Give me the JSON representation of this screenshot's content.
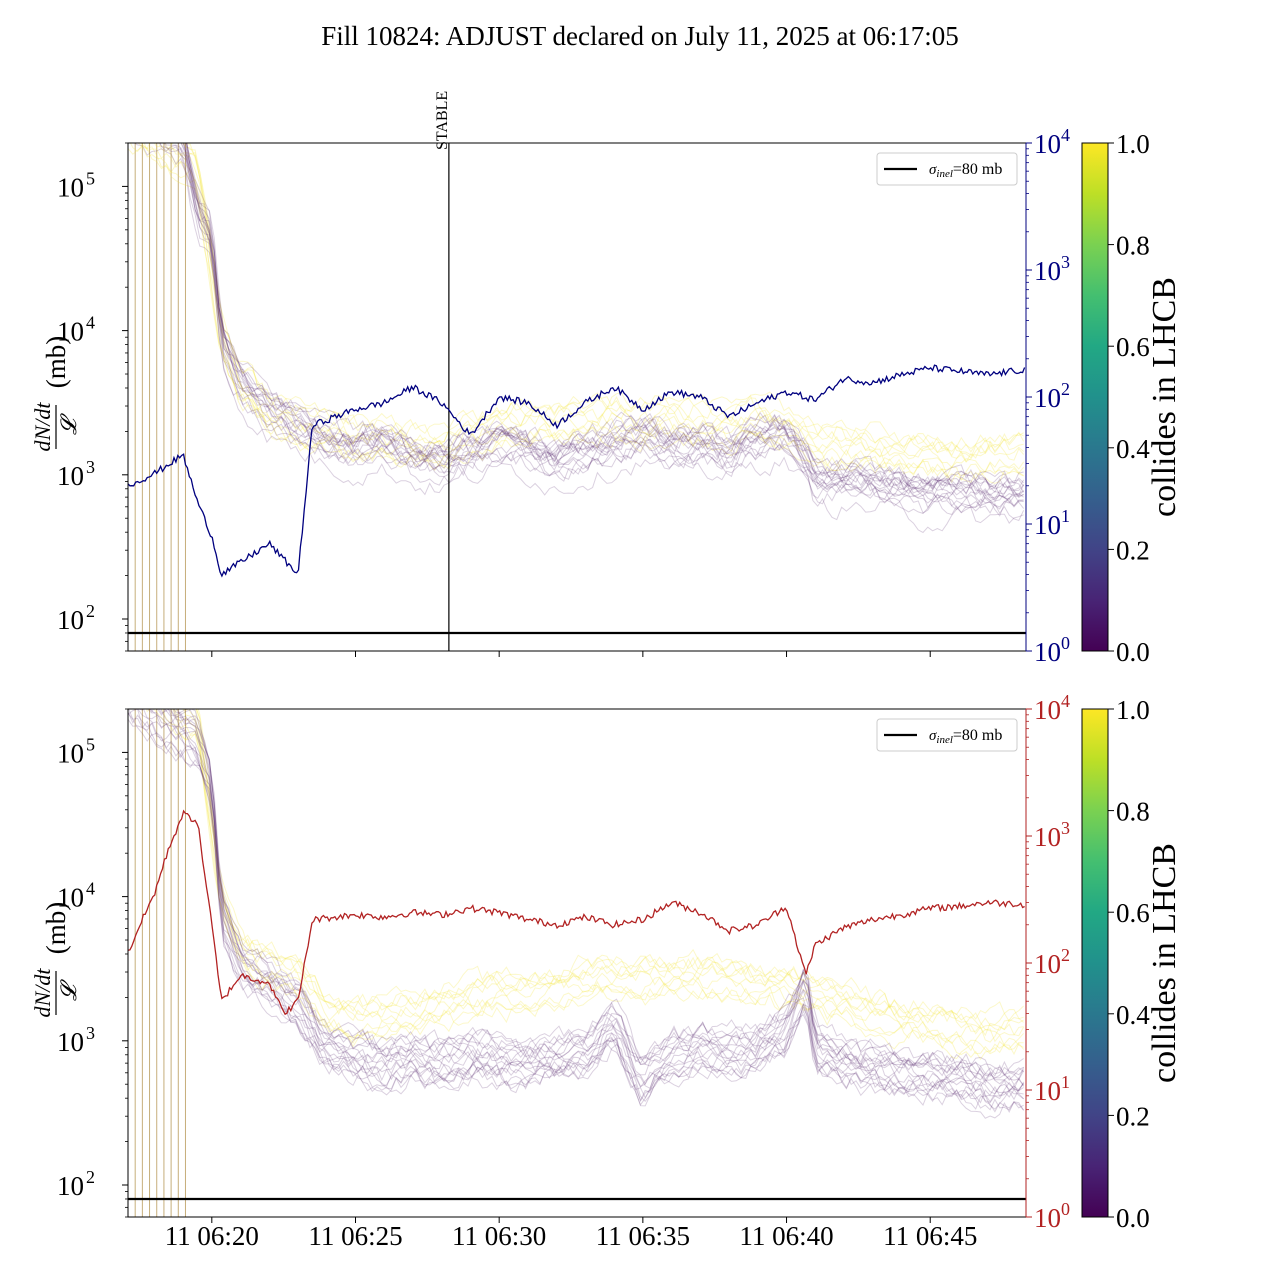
{
  "title": "Fill 10824: ADJUST declared on July 11, 2025 at 06:17:05",
  "colors": {
    "top_right_axis": "#00007f",
    "bottom_right_axis": "#b22222",
    "bundle_low": "#5a2e74",
    "bundle_high": "#f5e642",
    "reference_line": "#000000",
    "injection_lines": "#b89a5a"
  },
  "chart_data": [
    {
      "type": "line",
      "panel": "top",
      "ylabel_num": "dN/dt",
      "ylabel_den": "𝓛",
      "ylabel_unit": "(mb)",
      "y_scale": "log",
      "ylim": [
        60,
        200000
      ],
      "y_ticks": [
        "10",
        "10",
        "10",
        "10"
      ],
      "y_tick_exps": [
        "2",
        "3",
        "4",
        "5"
      ],
      "y2_scale": "log",
      "y2lim": [
        1,
        10000
      ],
      "y2_ticks": [
        "10",
        "10",
        "10",
        "10",
        "10"
      ],
      "y2_tick_exps": [
        "0",
        "1",
        "2",
        "3",
        "4"
      ],
      "xlim": [
        "06:17:05",
        "06:48:20"
      ],
      "reference_line": {
        "value": 80,
        "label_sym": "σ",
        "label_sub": "inel",
        "label_rest": "=80 mb"
      },
      "vertical_marker": {
        "time": "06:28:15",
        "label": "STABLE"
      },
      "injection_lines": [
        "06:17:20",
        "06:17:35",
        "06:17:50",
        "06:18:05",
        "06:18:20",
        "06:18:35",
        "06:18:50",
        "06:19:05"
      ],
      "right_series": {
        "name": "",
        "points": [
          [
            "06:17:05",
            20
          ],
          [
            "06:18:00",
            25
          ],
          [
            "06:19:00",
            35
          ],
          [
            "06:19:30",
            15
          ],
          [
            "06:20:00",
            8
          ],
          [
            "06:20:20",
            4
          ],
          [
            "06:21:00",
            5
          ],
          [
            "06:22:00",
            7
          ],
          [
            "06:23:00",
            4
          ],
          [
            "06:23:30",
            60
          ],
          [
            "06:25:00",
            80
          ],
          [
            "06:26:00",
            90
          ],
          [
            "06:27:00",
            120
          ],
          [
            "06:28:00",
            90
          ],
          [
            "06:29:00",
            50
          ],
          [
            "06:30:00",
            100
          ],
          [
            "06:31:00",
            90
          ],
          [
            "06:32:00",
            60
          ],
          [
            "06:33:00",
            90
          ],
          [
            "06:34:00",
            120
          ],
          [
            "06:35:00",
            80
          ],
          [
            "06:36:00",
            110
          ],
          [
            "06:37:00",
            100
          ],
          [
            "06:38:00",
            70
          ],
          [
            "06:39:00",
            90
          ],
          [
            "06:40:00",
            110
          ],
          [
            "06:41:00",
            95
          ],
          [
            "06:42:00",
            140
          ],
          [
            "06:43:00",
            130
          ],
          [
            "06:44:00",
            150
          ],
          [
            "06:45:00",
            170
          ],
          [
            "06:46:00",
            160
          ],
          [
            "06:47:00",
            150
          ],
          [
            "06:48:20",
            165
          ]
        ]
      },
      "bundle_low_median": [
        [
          "06:17:05",
          250000
        ],
        [
          "06:19:00",
          200000
        ],
        [
          "06:19:30",
          60000
        ],
        [
          "06:20:00",
          40000
        ],
        [
          "06:20:20",
          8000
        ],
        [
          "06:21:00",
          4000
        ],
        [
          "06:22:00",
          2500
        ],
        [
          "06:23:00",
          2000
        ],
        [
          "06:24:00",
          1600
        ],
        [
          "06:25:00",
          1400
        ],
        [
          "06:26:00",
          1500
        ],
        [
          "06:27:00",
          1200
        ],
        [
          "06:28:00",
          1100
        ],
        [
          "06:29:00",
          1300
        ],
        [
          "06:30:00",
          1500
        ],
        [
          "06:31:00",
          1400
        ],
        [
          "06:32:00",
          1100
        ],
        [
          "06:33:00",
          1300
        ],
        [
          "06:34:00",
          1500
        ],
        [
          "06:35:00",
          1700
        ],
        [
          "06:36:00",
          1400
        ],
        [
          "06:37:00",
          1500
        ],
        [
          "06:38:00",
          1300
        ],
        [
          "06:39:00",
          1600
        ],
        [
          "06:40:00",
          1700
        ],
        [
          "06:40:45",
          1100
        ],
        [
          "06:41:00",
          850
        ],
        [
          "06:42:00",
          800
        ],
        [
          "06:43:00",
          800
        ],
        [
          "06:44:00",
          750
        ],
        [
          "06:45:00",
          650
        ],
        [
          "06:46:00",
          700
        ],
        [
          "06:47:00",
          650
        ],
        [
          "06:48:20",
          700
        ]
      ],
      "bundle_high_median": [
        [
          "06:17:05",
          300000
        ],
        [
          "06:19:30",
          150000
        ],
        [
          "06:20:20",
          10000
        ],
        [
          "06:21:00",
          5000
        ],
        [
          "06:22:00",
          3000
        ],
        [
          "06:23:00",
          2400
        ],
        [
          "06:24:00",
          2200
        ],
        [
          "06:25:00",
          2000
        ],
        [
          "06:26:00",
          1900
        ],
        [
          "06:27:00",
          1800
        ],
        [
          "06:28:00",
          1700
        ],
        [
          "06:29:00",
          2200
        ],
        [
          "06:30:00",
          2400
        ],
        [
          "06:31:00",
          2600
        ],
        [
          "06:32:00",
          2500
        ],
        [
          "06:33:00",
          2600
        ],
        [
          "06:34:00",
          2800
        ],
        [
          "06:35:00",
          2600
        ],
        [
          "06:36:00",
          2700
        ],
        [
          "06:37:00",
          2600
        ],
        [
          "06:38:00",
          2500
        ],
        [
          "06:39:00",
          2600
        ],
        [
          "06:40:00",
          2400
        ],
        [
          "06:41:00",
          1800
        ],
        [
          "06:42:00",
          1800
        ],
        [
          "06:43:00",
          1700
        ],
        [
          "06:44:00",
          1600
        ],
        [
          "06:45:00",
          1500
        ],
        [
          "06:46:00",
          1400
        ],
        [
          "06:47:00",
          1500
        ],
        [
          "06:48:20",
          1600
        ]
      ]
    },
    {
      "type": "line",
      "panel": "bottom",
      "ylabel_num": "dN/dt",
      "ylabel_den": "𝓛",
      "ylabel_unit": "(mb)",
      "y_scale": "log",
      "ylim": [
        60,
        200000
      ],
      "y_ticks": [
        "10",
        "10",
        "10",
        "10"
      ],
      "y_tick_exps": [
        "2",
        "3",
        "4",
        "5"
      ],
      "y2_scale": "log",
      "y2lim": [
        1,
        10000
      ],
      "y2_ticks": [
        "10",
        "10",
        "10",
        "10",
        "10"
      ],
      "y2_tick_exps": [
        "0",
        "1",
        "2",
        "3",
        "4"
      ],
      "xlim": [
        "06:17:05",
        "06:48:20"
      ],
      "x_ticks": [
        "11 06:20",
        "11 06:25",
        "11 06:30",
        "11 06:35",
        "11 06:40",
        "11 06:45"
      ],
      "x_tick_times": [
        "06:20:00",
        "06:25:00",
        "06:30:00",
        "06:35:00",
        "06:40:00",
        "06:45:00"
      ],
      "reference_line": {
        "value": 80,
        "label_sym": "σ",
        "label_sub": "inel",
        "label_rest": "=80 mb"
      },
      "injection_lines": [
        "06:17:20",
        "06:17:35",
        "06:17:50",
        "06:18:05",
        "06:18:20",
        "06:18:35",
        "06:18:50",
        "06:19:05"
      ],
      "right_series": {
        "name": "",
        "points": [
          [
            "06:17:05",
            120
          ],
          [
            "06:17:30",
            200
          ],
          [
            "06:18:00",
            350
          ],
          [
            "06:18:30",
            800
          ],
          [
            "06:19:00",
            1500
          ],
          [
            "06:19:30",
            1300
          ],
          [
            "06:20:00",
            200
          ],
          [
            "06:20:20",
            50
          ],
          [
            "06:21:00",
            80
          ],
          [
            "06:22:00",
            70
          ],
          [
            "06:22:30",
            40
          ],
          [
            "06:23:00",
            50
          ],
          [
            "06:23:30",
            220
          ],
          [
            "06:25:00",
            240
          ],
          [
            "06:26:00",
            230
          ],
          [
            "06:27:00",
            250
          ],
          [
            "06:28:00",
            240
          ],
          [
            "06:29:00",
            270
          ],
          [
            "06:30:00",
            250
          ],
          [
            "06:31:00",
            220
          ],
          [
            "06:32:00",
            200
          ],
          [
            "06:33:00",
            230
          ],
          [
            "06:34:00",
            200
          ],
          [
            "06:35:00",
            220
          ],
          [
            "06:36:00",
            300
          ],
          [
            "06:37:00",
            250
          ],
          [
            "06:38:00",
            180
          ],
          [
            "06:39:00",
            200
          ],
          [
            "06:40:00",
            280
          ],
          [
            "06:40:40",
            80
          ],
          [
            "06:41:00",
            140
          ],
          [
            "06:42:00",
            190
          ],
          [
            "06:43:00",
            220
          ],
          [
            "06:44:00",
            240
          ],
          [
            "06:45:00",
            270
          ],
          [
            "06:46:00",
            280
          ],
          [
            "06:47:00",
            300
          ],
          [
            "06:48:20",
            290
          ]
        ]
      },
      "bundle_low_median": [
        [
          "06:17:05",
          250000
        ],
        [
          "06:19:30",
          120000
        ],
        [
          "06:20:00",
          60000
        ],
        [
          "06:20:20",
          8000
        ],
        [
          "06:21:00",
          3500
        ],
        [
          "06:22:00",
          2500
        ],
        [
          "06:23:00",
          1800
        ],
        [
          "06:24:00",
          900
        ],
        [
          "06:25:00",
          800
        ],
        [
          "06:26:00",
          700
        ],
        [
          "06:27:00",
          750
        ],
        [
          "06:28:00",
          700
        ],
        [
          "06:29:00",
          800
        ],
        [
          "06:30:00",
          750
        ],
        [
          "06:31:00",
          700
        ],
        [
          "06:32:00",
          800
        ],
        [
          "06:33:00",
          850
        ],
        [
          "06:34:00",
          1300
        ],
        [
          "06:34:45",
          650
        ],
        [
          "06:35:00",
          550
        ],
        [
          "06:36:00",
          800
        ],
        [
          "06:37:00",
          900
        ],
        [
          "06:38:00",
          850
        ],
        [
          "06:39:00",
          900
        ],
        [
          "06:40:00",
          1200
        ],
        [
          "06:40:40",
          2500
        ],
        [
          "06:41:00",
          900
        ],
        [
          "06:42:00",
          750
        ],
        [
          "06:43:00",
          650
        ],
        [
          "06:44:00",
          600
        ],
        [
          "06:45:00",
          600
        ],
        [
          "06:46:00",
          550
        ],
        [
          "06:47:00",
          500
        ],
        [
          "06:48:20",
          500
        ]
      ],
      "bundle_high_median": [
        [
          "06:17:05",
          300000
        ],
        [
          "06:19:30",
          150000
        ],
        [
          "06:20:20",
          9000
        ],
        [
          "06:21:00",
          4000
        ],
        [
          "06:22:00",
          3000
        ],
        [
          "06:23:00",
          2500
        ],
        [
          "06:24:00",
          1500
        ],
        [
          "06:25:00",
          1300
        ],
        [
          "06:26:00",
          1400
        ],
        [
          "06:27:00",
          1500
        ],
        [
          "06:28:00",
          1600
        ],
        [
          "06:29:00",
          1800
        ],
        [
          "06:30:00",
          1900
        ],
        [
          "06:31:00",
          2000
        ],
        [
          "06:32:00",
          2200
        ],
        [
          "06:33:00",
          2500
        ],
        [
          "06:34:00",
          2600
        ],
        [
          "06:35:00",
          2500
        ],
        [
          "06:36:00",
          2600
        ],
        [
          "06:37:00",
          2700
        ],
        [
          "06:38:00",
          2400
        ],
        [
          "06:39:00",
          2300
        ],
        [
          "06:40:00",
          2200
        ],
        [
          "06:41:00",
          2000
        ],
        [
          "06:42:00",
          1700
        ],
        [
          "06:43:00",
          1500
        ],
        [
          "06:44:00",
          1300
        ],
        [
          "06:45:00",
          1200
        ],
        [
          "06:46:00",
          1100
        ],
        [
          "06:47:00",
          1000
        ],
        [
          "06:48:20",
          1100
        ]
      ]
    }
  ],
  "colorbar": {
    "label": "collides in LHCB",
    "ticks": [
      "0.0",
      "0.2",
      "0.4",
      "0.6",
      "0.8",
      "1.0"
    ],
    "tick_values": [
      0,
      0.2,
      0.4,
      0.6,
      0.8,
      1.0
    ],
    "colormap": "viridis"
  }
}
